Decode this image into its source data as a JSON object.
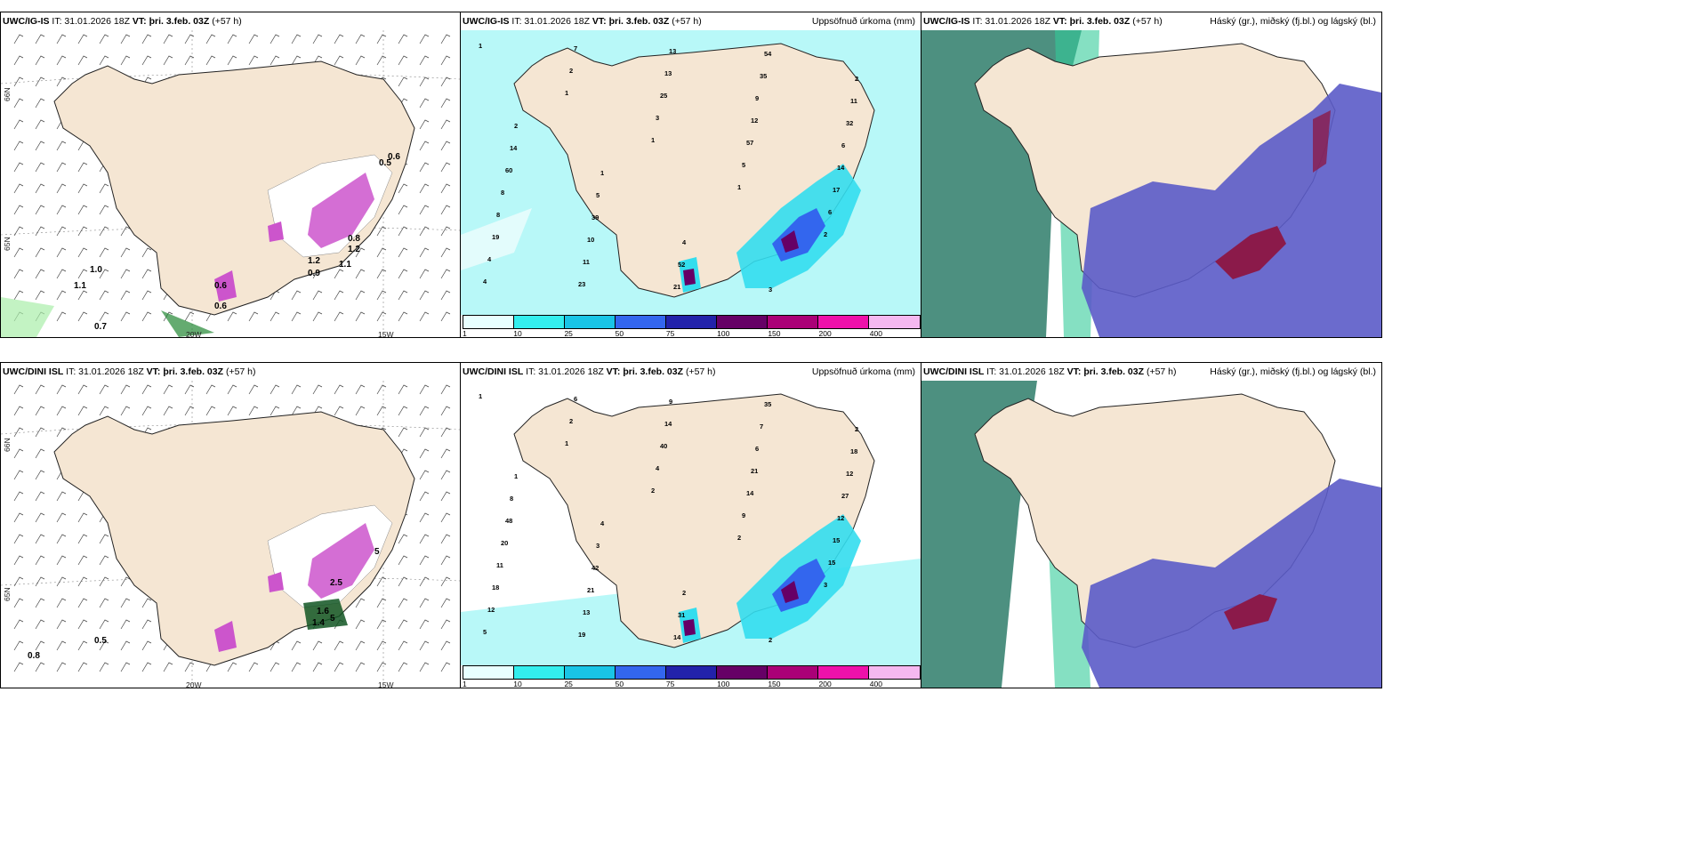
{
  "rows": [
    {
      "model": "UWC/IG-IS",
      "init": "IT: 31.01.2026 18Z",
      "valid": "VT: þri. 3.feb. 03Z",
      "lead": "(+57 h)",
      "wind_labels": [
        "1.0",
        "1.1",
        "0.7",
        "1.2",
        "0.9",
        "1.1",
        "0.8",
        "1.2",
        "0.6",
        "0.6",
        "0.5",
        "0.6"
      ],
      "precip_labels": [
        "1",
        "1",
        "1",
        "1",
        "2",
        "4",
        "2",
        "3",
        "5",
        "6",
        "4",
        "7",
        "25",
        "57",
        "17",
        "19",
        "23",
        "13",
        "12",
        "14",
        "8",
        "11",
        "13",
        "9",
        "6",
        "8",
        "10",
        "21",
        "35",
        "32",
        "60",
        "39",
        "52",
        "54",
        "11",
        "14",
        "5",
        "4",
        "3",
        "2",
        "2",
        "1"
      ]
    },
    {
      "model": "UWC/DINI ISL",
      "init": "IT: 31.01.2026 18Z",
      "valid": "VT: þri. 3.feb. 03Z",
      "lead": "(+57 h)",
      "wind_labels": [
        "0.5",
        "0.8",
        "1.4",
        "5",
        "1.6",
        "2.5",
        "5"
      ],
      "precip_labels": [
        "1",
        "1",
        "2",
        "2",
        "3",
        "5",
        "2",
        "4",
        "9",
        "15",
        "12",
        "6",
        "40",
        "14",
        "15",
        "18",
        "19",
        "14",
        "21",
        "12",
        "11",
        "13",
        "9",
        "6",
        "27",
        "20",
        "21",
        "14",
        "7",
        "12",
        "48",
        "42",
        "31",
        "35",
        "18",
        "8",
        "3",
        "2",
        "2",
        "2",
        "1",
        "4"
      ]
    }
  ],
  "panels": {
    "precip_title": "Uppsöfnuð úrkoma (mm)",
    "cloud_title": "Háský (gr.), miðský (fj.bl.) og lágský (bl.)"
  },
  "axis": {
    "lon_labels": [
      "20W",
      "15W"
    ],
    "lat_labels": [
      "65N",
      "66N"
    ]
  },
  "colorbar": {
    "labels": [
      "1",
      "10",
      "25",
      "50",
      "75",
      "100",
      "150",
      "200",
      "400"
    ],
    "colors": [
      "#e8ffff",
      "#33eeee",
      "#19c4e6",
      "#3366ee",
      "#2222aa",
      "#660066",
      "#aa0077",
      "#ee11aa",
      "#f5b8f0"
    ]
  },
  "colors": {
    "land": "#f5e6d3",
    "precip_light": "#b8f8f8",
    "precip_med": "#33ddee",
    "precip_heavy": "#660066",
    "cloud_high": "#2e7d6a",
    "cloud_mid": "#5b5bc8",
    "cloud_low": "#8b1a4a"
  }
}
